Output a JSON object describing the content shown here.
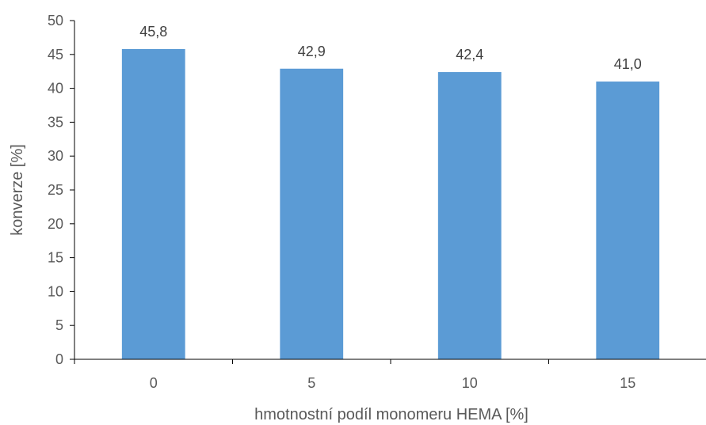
{
  "chart_data": {
    "type": "bar",
    "categories": [
      "0",
      "5",
      "10",
      "15"
    ],
    "values": [
      45.8,
      42.9,
      42.4,
      41.0
    ],
    "data_labels": [
      "45,8",
      "42,9",
      "42,4",
      "41,0"
    ],
    "title": "",
    "xlabel": "hmotnostní podíl monomeru HEMA [%]",
    "ylabel": "konverze [%]",
    "ylim": [
      0,
      50
    ],
    "yticks": [
      0,
      5,
      10,
      15,
      20,
      25,
      30,
      35,
      40,
      45,
      50
    ],
    "grid": false,
    "legend": "none",
    "bar_color": "#5B9BD5",
    "axis_color": "#000000"
  }
}
